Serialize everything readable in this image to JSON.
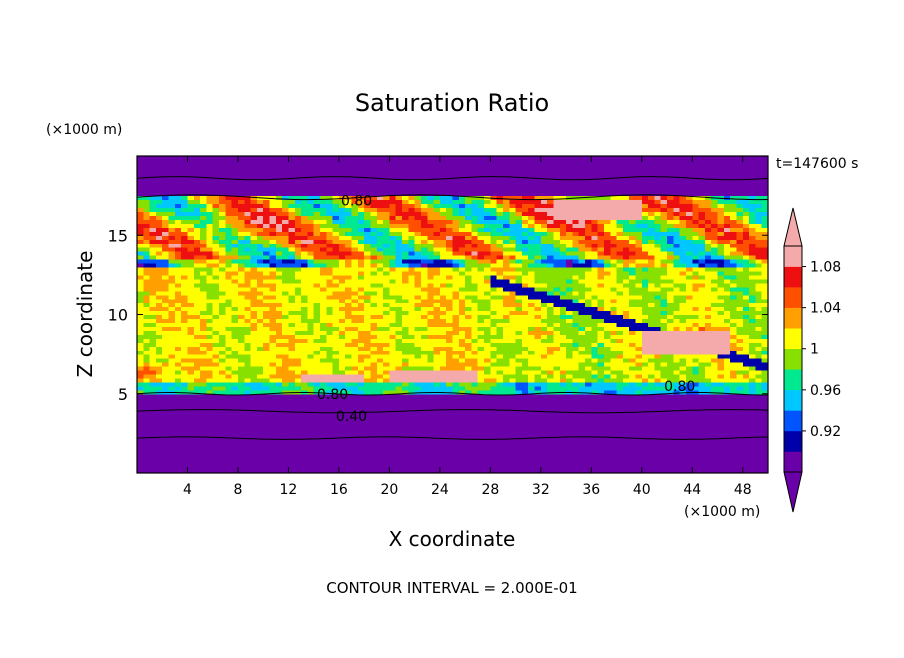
{
  "chart_data": {
    "type": "heatmap",
    "title": "Saturation Ratio",
    "time_label": "t=147600 s",
    "xlabel": "X coordinate",
    "ylabel": "Z coordinate",
    "x_unit": "(×1000 m)",
    "y_unit": "(×1000 m)",
    "footer": "CONTOUR INTERVAL = 2.000E-01",
    "xlim": [
      0,
      50
    ],
    "ylim": [
      0,
      20
    ],
    "x_ticks": [
      4,
      8,
      12,
      16,
      20,
      24,
      28,
      32,
      36,
      40,
      44,
      48
    ],
    "y_ticks": [
      5,
      10,
      15
    ],
    "colorbar": {
      "levels": [
        0.9,
        0.92,
        0.94,
        0.96,
        0.98,
        1.0,
        1.02,
        1.04,
        1.06,
        1.08,
        1.1
      ],
      "labels": [
        "0.92",
        "0.96",
        "1",
        "1.04",
        "1.08"
      ],
      "label_levels": [
        0.92,
        0.96,
        1.0,
        1.04,
        1.08
      ],
      "colors": [
        "#6a00a8",
        "#0000aa",
        "#0055ff",
        "#00c8ff",
        "#00e890",
        "#88e000",
        "#ffff00",
        "#ffa000",
        "#ff5000",
        "#ee1010",
        "#f4aaaa"
      ],
      "under_color": "#6a00a8",
      "over_color": "#f4aaaa"
    },
    "contour_labels": [
      {
        "text": "0.80",
        "x": 17.4,
        "z": 17.2
      },
      {
        "text": "0.80",
        "x": 15.5,
        "z": 5.0
      },
      {
        "text": "0.40",
        "x": 17.0,
        "z": 3.6
      },
      {
        "text": "0.80",
        "x": 43.0,
        "z": 5.5
      }
    ],
    "regions": {
      "upper_dry_max": 0.8,
      "cirrus_band_z": [
        13,
        17
      ],
      "mid_cloud_z": [
        5.5,
        14
      ],
      "lower_dry_z": [
        0,
        5.0
      ],
      "supersaturated_patches": [
        {
          "x": [
            13,
            18
          ],
          "z": [
            5.7,
            6.3
          ]
        },
        {
          "x": [
            20,
            27
          ],
          "z": [
            5.7,
            6.4
          ]
        },
        {
          "x": [
            33,
            40
          ],
          "z": [
            16,
            17.2
          ]
        },
        {
          "x": [
            40,
            47
          ],
          "z": [
            7.5,
            9.0
          ]
        }
      ]
    }
  }
}
